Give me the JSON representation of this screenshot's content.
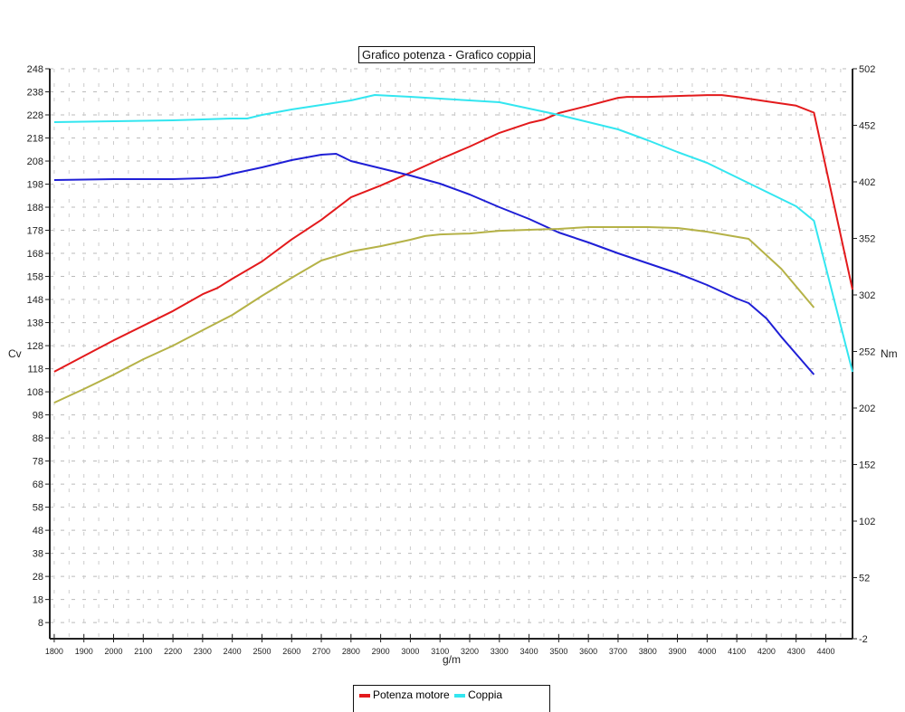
{
  "chart_data": {
    "type": "line",
    "title": "Grafico potenza - Grafico coppia",
    "xlabel": "g/m",
    "ylabel_left": "Cv",
    "ylabel_right": "Nm",
    "xlim": [
      1785,
      4490
    ],
    "ylim_left": [
      1,
      248
    ],
    "ylim_right": [
      -2,
      502
    ],
    "x_ticks": [
      1800,
      1900,
      2000,
      2100,
      2200,
      2300,
      2400,
      2500,
      2600,
      2700,
      2800,
      2900,
      3000,
      3100,
      3200,
      3300,
      3400,
      3500,
      3600,
      3700,
      3800,
      3900,
      4000,
      4100,
      4200,
      4300,
      4400
    ],
    "y_ticks_left": [
      8,
      18,
      28,
      38,
      48,
      58,
      68,
      78,
      88,
      98,
      108,
      118,
      128,
      138,
      148,
      158,
      168,
      178,
      188,
      198,
      208,
      218,
      228,
      238,
      248
    ],
    "y_ticks_right": [
      -2,
      52,
      102,
      152,
      202,
      252,
      302,
      352,
      402,
      452,
      502
    ],
    "grid": true,
    "legend_position": "bottom",
    "legend": [
      {
        "label": "Potenza motore",
        "color": "#e31a1c"
      },
      {
        "label": "Coppia",
        "color": "#33e6f0"
      }
    ],
    "series": [
      {
        "name": "Potenza motore",
        "axis": "left",
        "color": "#e31a1c",
        "x": [
          1800,
          2000,
          2200,
          2300,
          2350,
          2400,
          2500,
          2600,
          2700,
          2800,
          2900,
          3000,
          3100,
          3200,
          3300,
          3400,
          3450,
          3500,
          3600,
          3700,
          3730,
          3800,
          3900,
          4000,
          4050,
          4100,
          4200,
          4300,
          4360,
          4490
        ],
        "y": [
          116.7,
          130.3,
          143,
          150.3,
          153,
          157,
          164.5,
          174,
          182.5,
          192.3,
          197.4,
          203,
          208.8,
          214.3,
          220.2,
          224.5,
          226,
          228.8,
          232,
          235.4,
          235.8,
          235.8,
          236.2,
          236.6,
          236.6,
          235.8,
          233.9,
          232,
          229,
          152.3
        ]
      },
      {
        "name": "Coppia",
        "axis": "right",
        "color": "#33e6f0",
        "x": [
          1800,
          2000,
          2200,
          2300,
          2400,
          2450,
          2500,
          2600,
          2700,
          2800,
          2880,
          3000,
          3100,
          3200,
          3300,
          3400,
          3500,
          3600,
          3700,
          3800,
          3900,
          4000,
          4100,
          4200,
          4300,
          4360,
          4490
        ],
        "y": [
          454.8,
          455.6,
          456.4,
          457.2,
          458,
          458,
          461.2,
          466,
          470,
          474,
          478.8,
          477.2,
          475.6,
          474,
          472.4,
          466.8,
          461.2,
          454.8,
          448.4,
          438.8,
          428.4,
          418.8,
          406,
          393.2,
          380.4,
          367.6,
          234
        ]
      },
      {
        "axis": "right",
        "color": "#1f1fd6",
        "x": [
          1800,
          2000,
          2200,
          2300,
          2350,
          2400,
          2500,
          2600,
          2700,
          2750,
          2800,
          2900,
          3000,
          3100,
          3200,
          3300,
          3400,
          3500,
          3600,
          3700,
          3800,
          3900,
          4000,
          4100,
          4140,
          4200,
          4250,
          4360
        ],
        "y": [
          403.6,
          404.4,
          404.4,
          405.2,
          406,
          409.2,
          414.8,
          421.2,
          426,
          426.8,
          420.4,
          414,
          407.6,
          400.4,
          390.8,
          379.6,
          369.2,
          357.2,
          348.4,
          338.8,
          330,
          321.2,
          310.8,
          298.8,
          294.8,
          281.2,
          265,
          231.6
        ]
      },
      {
        "axis": "left",
        "color": "#b5b247",
        "x": [
          1800,
          1900,
          2000,
          2100,
          2200,
          2300,
          2400,
          2500,
          2600,
          2700,
          2750,
          2800,
          2900,
          3000,
          3050,
          3100,
          3200,
          3300,
          3400,
          3500,
          3600,
          3700,
          3800,
          3900,
          4000,
          4140,
          4250,
          4360
        ],
        "y": [
          103.3,
          109.2,
          115.4,
          122.1,
          128,
          134.7,
          141.3,
          149.6,
          157.4,
          164.9,
          166.8,
          168.8,
          171.1,
          173.9,
          175.5,
          176.2,
          176.6,
          177.8,
          178.2,
          178.6,
          179.4,
          179.4,
          179.4,
          179,
          177.4,
          174.3,
          161.3,
          144.5
        ]
      }
    ]
  }
}
